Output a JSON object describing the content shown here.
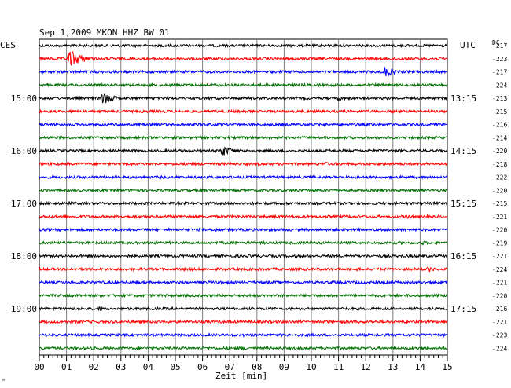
{
  "chart_data": {
    "type": "line",
    "title": "Sep 1,2009   MKON HHZ BW 01",
    "left_zone": "CES",
    "right_zone": "UTC",
    "dc_header": "DC",
    "xlabel": "Zeit [min]",
    "x_ticks": [
      "00",
      "01",
      "02",
      "03",
      "04",
      "05",
      "06",
      "07",
      "08",
      "09",
      "10",
      "11",
      "12",
      "13",
      "14",
      "15"
    ],
    "xlim": [
      0,
      15
    ],
    "trace_colors": [
      "#000000",
      "#ff0000",
      "#0000ff",
      "#007000"
    ],
    "left_hour_labels": [
      {
        "row": 4,
        "label": "15:00"
      },
      {
        "row": 8,
        "label": "16:00"
      },
      {
        "row": 12,
        "label": "17:00"
      },
      {
        "row": 16,
        "label": "18:00"
      },
      {
        "row": 20,
        "label": "19:00"
      }
    ],
    "right_hour_labels": [
      {
        "row": 4,
        "label": "13:15"
      },
      {
        "row": 8,
        "label": "14:15"
      },
      {
        "row": 12,
        "label": "15:15"
      },
      {
        "row": 16,
        "label": "16:15"
      },
      {
        "row": 20,
        "label": "17:15"
      }
    ],
    "dc_offsets": [
      -217,
      -223,
      -217,
      -224,
      -213,
      -215,
      -216,
      -214,
      -220,
      -218,
      -222,
      -220,
      -215,
      -221,
      -220,
      -219,
      -221,
      -224,
      -221,
      -220,
      -216,
      -221,
      -223,
      -224
    ],
    "events": [
      {
        "row": 1,
        "minute": 1.1,
        "amplitude": 12
      },
      {
        "row": 2,
        "minute": 12.7,
        "amplitude": 7
      },
      {
        "row": 4,
        "minute": 2.3,
        "amplitude": 9
      },
      {
        "row": 4,
        "minute": 11.0,
        "amplitude": 4
      },
      {
        "row": 8,
        "minute": 6.7,
        "amplitude": 8
      },
      {
        "row": 9,
        "minute": 10.5,
        "amplitude": 3
      },
      {
        "row": 13,
        "minute": 3.5,
        "amplitude": 3
      },
      {
        "row": 13,
        "minute": 13.5,
        "amplitude": 3
      },
      {
        "row": 14,
        "minute": 6.5,
        "amplitude": 3
      },
      {
        "row": 15,
        "minute": 4.7,
        "amplitude": 3
      },
      {
        "row": 15,
        "minute": 14.1,
        "amplitude": 3
      },
      {
        "row": 17,
        "minute": 14.3,
        "amplitude": 4
      },
      {
        "row": 20,
        "minute": 2.2,
        "amplitude": 3
      },
      {
        "row": 23,
        "minute": 7.4,
        "amplitude": 4
      }
    ]
  }
}
